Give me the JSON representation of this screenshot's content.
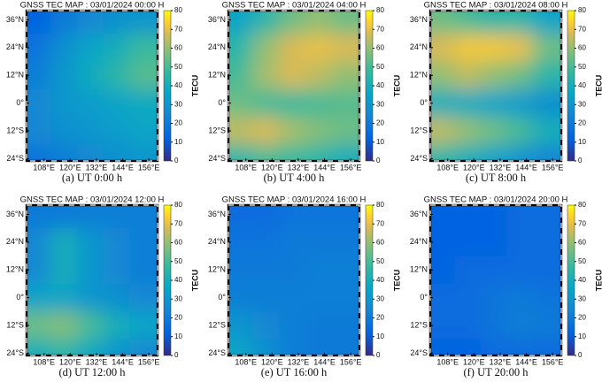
{
  "chart_data": [
    {
      "type": "heatmap",
      "title": "GNSS TEC MAP : 03/01/2024 00:00 H",
      "caption": "(a) UT 0:00 h",
      "colorbar_label": "TECU",
      "xlim": [
        100,
        160
      ],
      "ylim": [
        -25,
        40
      ],
      "clim": [
        0,
        80
      ],
      "xticks": [
        {
          "value": 108,
          "label": "108°E"
        },
        {
          "value": 120,
          "label": "120°E"
        },
        {
          "value": 132,
          "label": "132°E"
        },
        {
          "value": 144,
          "label": "144°E"
        },
        {
          "value": 156,
          "label": "156°E"
        }
      ],
      "yticks": [
        {
          "value": 36,
          "label": "36°N"
        },
        {
          "value": 24,
          "label": "24°N"
        },
        {
          "value": 12,
          "label": "12°N"
        },
        {
          "value": 0,
          "label": "0°"
        },
        {
          "value": -12,
          "label": "12°S"
        },
        {
          "value": -24,
          "label": "24°S"
        }
      ],
      "cticks": [
        0,
        10,
        20,
        30,
        40,
        50,
        60,
        70,
        80
      ],
      "lon": [
        105,
        117,
        129,
        141,
        153
      ],
      "lat": [
        36,
        24,
        12,
        0,
        -12,
        -24
      ],
      "values": [
        [
          12,
          20,
          25,
          28,
          30
        ],
        [
          18,
          28,
          35,
          40,
          48
        ],
        [
          22,
          30,
          38,
          45,
          52
        ],
        [
          25,
          30,
          32,
          35,
          38
        ],
        [
          25,
          28,
          30,
          32,
          35
        ],
        [
          18,
          22,
          25,
          28,
          30
        ]
      ]
    },
    {
      "type": "heatmap",
      "title": "GNSS TEC MAP : 03/01/2024 04:00 H",
      "caption": "(b) UT 4:00 h",
      "colorbar_label": "TECU",
      "xlim": [
        100,
        160
      ],
      "ylim": [
        -25,
        40
      ],
      "clim": [
        0,
        80
      ],
      "xticks": [
        {
          "value": 108,
          "label": "108°E"
        },
        {
          "value": 120,
          "label": "120°E"
        },
        {
          "value": 132,
          "label": "132°E"
        },
        {
          "value": 144,
          "label": "144°E"
        },
        {
          "value": 156,
          "label": "156°E"
        }
      ],
      "yticks": [
        {
          "value": 36,
          "label": "36°N"
        },
        {
          "value": 24,
          "label": "24°N"
        },
        {
          "value": 12,
          "label": "12°N"
        },
        {
          "value": 0,
          "label": "0°"
        },
        {
          "value": -12,
          "label": "12°S"
        },
        {
          "value": -24,
          "label": "24°S"
        }
      ],
      "cticks": [
        0,
        10,
        20,
        30,
        40,
        50,
        60,
        70,
        80
      ],
      "lon": [
        105,
        117,
        129,
        141,
        153
      ],
      "lat": [
        36,
        24,
        12,
        0,
        -12,
        -24
      ],
      "values": [
        [
          35,
          45,
          55,
          60,
          55
        ],
        [
          45,
          60,
          68,
          70,
          68
        ],
        [
          50,
          62,
          68,
          65,
          60
        ],
        [
          55,
          50,
          48,
          50,
          52
        ],
        [
          65,
          68,
          62,
          58,
          55
        ],
        [
          45,
          50,
          48,
          45,
          40
        ]
      ]
    },
    {
      "type": "heatmap",
      "title": "GNSS TEC MAP : 03/01/2024 08:00 H",
      "caption": "(c) UT 8:00 h",
      "colorbar_label": "TECU",
      "xlim": [
        100,
        160
      ],
      "ylim": [
        -25,
        40
      ],
      "clim": [
        0,
        80
      ],
      "xticks": [
        {
          "value": 108,
          "label": "108°E"
        },
        {
          "value": 120,
          "label": "120°E"
        },
        {
          "value": 132,
          "label": "132°E"
        },
        {
          "value": 144,
          "label": "144°E"
        },
        {
          "value": 156,
          "label": "156°E"
        }
      ],
      "yticks": [
        {
          "value": 36,
          "label": "36°N"
        },
        {
          "value": 24,
          "label": "24°N"
        },
        {
          "value": 12,
          "label": "12°N"
        },
        {
          "value": 0,
          "label": "0°"
        },
        {
          "value": -12,
          "label": "12°S"
        },
        {
          "value": -24,
          "label": "24°S"
        }
      ],
      "cticks": [
        0,
        10,
        20,
        30,
        40,
        50,
        60,
        70,
        80
      ],
      "lon": [
        105,
        117,
        129,
        141,
        153
      ],
      "lat": [
        36,
        24,
        12,
        0,
        -12,
        -24
      ],
      "values": [
        [
          55,
          50,
          45,
          45,
          35
        ],
        [
          68,
          72,
          72,
          70,
          55
        ],
        [
          60,
          65,
          60,
          55,
          45
        ],
        [
          40,
          38,
          35,
          32,
          28
        ],
        [
          65,
          60,
          55,
          50,
          40
        ],
        [
          45,
          40,
          35,
          30,
          25
        ]
      ]
    },
    {
      "type": "heatmap",
      "title": "GNSS TEC MAP : 03/01/2024 12:00 H",
      "caption": "(d) UT 12:00 h",
      "colorbar_label": "TECU",
      "xlim": [
        100,
        160
      ],
      "ylim": [
        -25,
        40
      ],
      "clim": [
        0,
        80
      ],
      "xticks": [
        {
          "value": 108,
          "label": "108°E"
        },
        {
          "value": 120,
          "label": "120°E"
        },
        {
          "value": 132,
          "label": "132°E"
        },
        {
          "value": 144,
          "label": "144°E"
        },
        {
          "value": 156,
          "label": "156°E"
        }
      ],
      "yticks": [
        {
          "value": 36,
          "label": "36°N"
        },
        {
          "value": 24,
          "label": "24°N"
        },
        {
          "value": 12,
          "label": "12°N"
        },
        {
          "value": 0,
          "label": "0°"
        },
        {
          "value": -12,
          "label": "12°S"
        },
        {
          "value": -24,
          "label": "24°S"
        }
      ],
      "cticks": [
        0,
        10,
        20,
        30,
        40,
        50,
        60,
        70,
        80
      ],
      "lon": [
        105,
        117,
        129,
        141,
        153
      ],
      "lat": [
        36,
        24,
        12,
        0,
        -12,
        -24
      ],
      "values": [
        [
          20,
          20,
          22,
          22,
          22
        ],
        [
          25,
          40,
          30,
          25,
          22
        ],
        [
          25,
          40,
          30,
          25,
          22
        ],
        [
          35,
          35,
          30,
          28,
          25
        ],
        [
          55,
          58,
          50,
          40,
          35
        ],
        [
          40,
          45,
          38,
          30,
          25
        ]
      ]
    },
    {
      "type": "heatmap",
      "title": "GNSS TEC MAP : 03/01/2024 16:00 H",
      "caption": "(e) UT 16:00 h",
      "colorbar_label": "TECU",
      "xlim": [
        100,
        160
      ],
      "ylim": [
        -25,
        40
      ],
      "clim": [
        0,
        80
      ],
      "xticks": [
        {
          "value": 108,
          "label": "108°E"
        },
        {
          "value": 120,
          "label": "120°E"
        },
        {
          "value": 132,
          "label": "132°E"
        },
        {
          "value": 144,
          "label": "144°E"
        },
        {
          "value": 156,
          "label": "156°E"
        }
      ],
      "yticks": [
        {
          "value": 36,
          "label": "36°N"
        },
        {
          "value": 24,
          "label": "24°N"
        },
        {
          "value": 12,
          "label": "12°N"
        },
        {
          "value": 0,
          "label": "0°"
        },
        {
          "value": -12,
          "label": "12°S"
        },
        {
          "value": -24,
          "label": "24°S"
        }
      ],
      "cticks": [
        0,
        10,
        20,
        30,
        40,
        50,
        60,
        70,
        80
      ],
      "lon": [
        105,
        117,
        129,
        141,
        153
      ],
      "lat": [
        36,
        24,
        12,
        0,
        -12,
        -24
      ],
      "values": [
        [
          15,
          15,
          18,
          18,
          18
        ],
        [
          18,
          18,
          20,
          20,
          20
        ],
        [
          20,
          20,
          20,
          22,
          22
        ],
        [
          22,
          22,
          22,
          22,
          22
        ],
        [
          30,
          25,
          22,
          20,
          20
        ],
        [
          35,
          28,
          22,
          20,
          20
        ]
      ]
    },
    {
      "type": "heatmap",
      "title": "GNSS TEC MAP : 03/01/2024 20:00 H",
      "caption": "(f) UT 20:00 h",
      "colorbar_label": "TECU",
      "xlim": [
        100,
        160
      ],
      "ylim": [
        -25,
        40
      ],
      "clim": [
        0,
        80
      ],
      "xticks": [
        {
          "value": 108,
          "label": "108°E"
        },
        {
          "value": 120,
          "label": "120°E"
        },
        {
          "value": 132,
          "label": "132°E"
        },
        {
          "value": 144,
          "label": "144°E"
        },
        {
          "value": 156,
          "label": "156°E"
        }
      ],
      "yticks": [
        {
          "value": 36,
          "label": "36°N"
        },
        {
          "value": 24,
          "label": "24°N"
        },
        {
          "value": 12,
          "label": "12°N"
        },
        {
          "value": 0,
          "label": "0°"
        },
        {
          "value": -12,
          "label": "12°S"
        },
        {
          "value": -24,
          "label": "24°S"
        }
      ],
      "cticks": [
        0,
        10,
        20,
        30,
        40,
        50,
        60,
        70,
        80
      ],
      "lon": [
        105,
        117,
        129,
        141,
        153
      ],
      "lat": [
        36,
        24,
        12,
        0,
        -12,
        -24
      ],
      "values": [
        [
          12,
          12,
          12,
          15,
          15
        ],
        [
          12,
          12,
          12,
          15,
          15
        ],
        [
          12,
          15,
          15,
          15,
          15
        ],
        [
          15,
          15,
          18,
          20,
          18
        ],
        [
          15,
          15,
          18,
          22,
          20
        ],
        [
          12,
          12,
          15,
          15,
          15
        ]
      ]
    }
  ]
}
